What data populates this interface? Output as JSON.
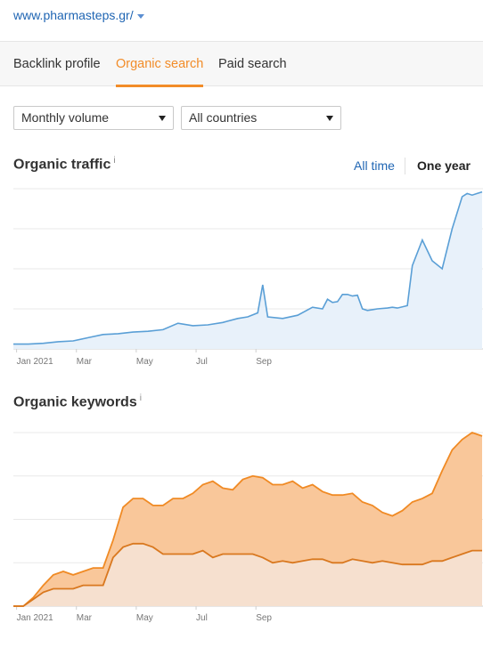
{
  "domain": {
    "text": "www.pharmasteps.gr/"
  },
  "tabs": [
    {
      "label": "Backlink profile"
    },
    {
      "label": "Organic search"
    },
    {
      "label": "Paid search"
    }
  ],
  "filters": {
    "volume": "Monthly volume",
    "country": "All countries"
  },
  "traffic_section": {
    "title": "Organic traffic",
    "info": "i",
    "range_all": "All time",
    "range_year": "One year"
  },
  "keywords_section": {
    "title": "Organic keywords",
    "info": "i"
  },
  "colors": {
    "accent": "#f28c28",
    "link": "#1f65b3",
    "traffic_line": "#5a9fd6",
    "traffic_fill": "#e8f1fa",
    "keywords_top_fill": "#f9c79a",
    "keywords_top_line": "#f08a24",
    "keywords_bottom_fill": "#f6e0cf",
    "keywords_bottom_line": "#d9781f"
  },
  "chart_data": [
    {
      "type": "area",
      "name": "organic-traffic",
      "x_tick_labels": [
        "Jan 2021",
        "Mar",
        "May",
        "Jul",
        "Sep"
      ],
      "x_days": [
        0,
        15,
        30,
        45,
        60,
        75,
        90,
        105,
        120,
        135,
        150,
        165,
        180,
        195,
        210,
        225,
        235,
        245,
        250,
        255,
        270,
        285,
        300,
        310,
        315,
        320,
        325,
        330,
        335,
        340,
        345,
        350,
        355,
        360,
        365,
        375,
        380,
        385,
        395,
        400,
        410,
        420,
        430,
        440,
        450,
        455,
        460,
        465,
        470
      ],
      "y": [
        3,
        3,
        3.5,
        4.5,
        5,
        7,
        9,
        9.5,
        10.5,
        11,
        12,
        16,
        14.5,
        15,
        16.5,
        19,
        20,
        22.5,
        40,
        20,
        19,
        21,
        26,
        25,
        31,
        29,
        29.5,
        34,
        34,
        33,
        33.5,
        25,
        24,
        24.5,
        25,
        25.5,
        26,
        25.5,
        27,
        52,
        68,
        55,
        50,
        75,
        95,
        97,
        96,
        97,
        98
      ],
      "ylim": [
        0,
        100
      ]
    },
    {
      "type": "area",
      "name": "organic-keywords",
      "x_tick_labels": [
        "Jan 2021",
        "Mar",
        "May",
        "Jul",
        "Sep"
      ],
      "series": [
        {
          "x_days": [
            0,
            10,
            20,
            30,
            40,
            50,
            60,
            70,
            80,
            90,
            100,
            110,
            120,
            130,
            140,
            150,
            160,
            170,
            180,
            190,
            200,
            210,
            220,
            230,
            240,
            250,
            260,
            270,
            280,
            290,
            300,
            310,
            320,
            330,
            340,
            350,
            360,
            370,
            380,
            390,
            400,
            410,
            420,
            430,
            440,
            450,
            460,
            470
          ],
          "values": [
            0,
            0,
            5,
            12,
            18,
            20,
            18,
            20,
            22,
            22,
            38,
            57,
            62,
            62,
            58,
            58,
            62,
            62,
            65,
            70,
            72,
            68,
            67,
            73,
            75,
            74,
            70,
            70,
            72,
            68,
            70,
            66,
            64,
            64,
            65,
            60,
            58,
            54,
            52,
            55,
            60,
            62,
            65,
            78,
            90,
            96,
            100,
            98
          ],
          "ylim": [
            0,
            100
          ]
        },
        {
          "x_days": [
            0,
            10,
            20,
            30,
            40,
            50,
            60,
            70,
            80,
            90,
            100,
            110,
            120,
            130,
            140,
            150,
            160,
            170,
            180,
            190,
            200,
            210,
            220,
            230,
            240,
            250,
            260,
            270,
            280,
            290,
            300,
            310,
            320,
            330,
            340,
            350,
            360,
            370,
            380,
            390,
            400,
            410,
            420,
            430,
            440,
            450,
            460,
            470
          ],
          "values": [
            0,
            0,
            4,
            8,
            10,
            10,
            10,
            12,
            12,
            12,
            28,
            34,
            36,
            36,
            34,
            30,
            30,
            30,
            30,
            32,
            28,
            30,
            30,
            30,
            30,
            28,
            25,
            26,
            25,
            26,
            27,
            27,
            25,
            25,
            27,
            26,
            25,
            26,
            25,
            24,
            24,
            24,
            26,
            26,
            28,
            30,
            32,
            32
          ],
          "ylim": [
            0,
            100
          ]
        }
      ]
    }
  ]
}
